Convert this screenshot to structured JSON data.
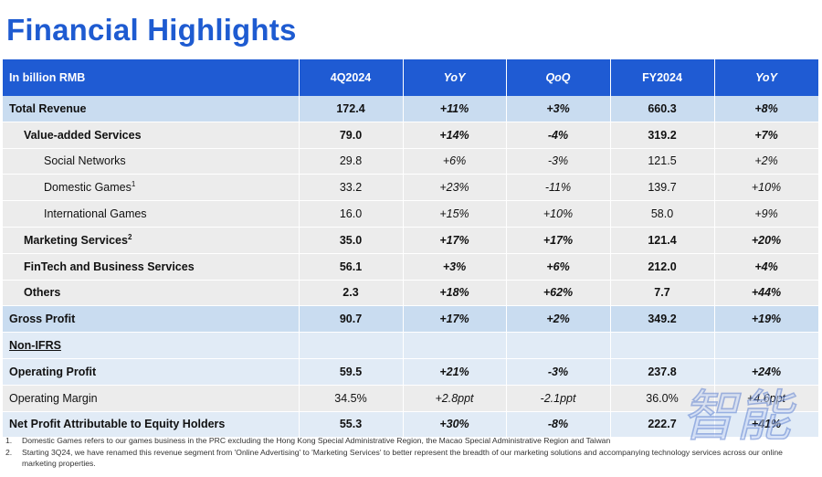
{
  "title": "Financial Highlights",
  "table": {
    "headers": [
      "In billion RMB",
      "4Q2024",
      "YoY",
      "QoQ",
      "FY2024",
      "YoY"
    ],
    "rows": [
      {
        "label": "Total Revenue",
        "sup": "",
        "q4": "172.4",
        "yoy": "+11%",
        "qoq": "+3%",
        "fy": "660.3",
        "fyoy": "+8%"
      },
      {
        "label": "Value-added Services",
        "sup": "",
        "q4": "79.0",
        "yoy": "+14%",
        "qoq": "-4%",
        "fy": "319.2",
        "fyoy": "+7%"
      },
      {
        "label": "Social Networks",
        "sup": "",
        "q4": "29.8",
        "yoy": "+6%",
        "qoq": "-3%",
        "fy": "121.5",
        "fyoy": "+2%"
      },
      {
        "label": "Domestic Games",
        "sup": "1",
        "q4": "33.2",
        "yoy": "+23%",
        "qoq": "-11%",
        "fy": "139.7",
        "fyoy": "+10%"
      },
      {
        "label": "International Games",
        "sup": "",
        "q4": "16.0",
        "yoy": "+15%",
        "qoq": "+10%",
        "fy": "58.0",
        "fyoy": "+9%"
      },
      {
        "label": "Marketing Services",
        "sup": "2",
        "q4": "35.0",
        "yoy": "+17%",
        "qoq": "+17%",
        "fy": "121.4",
        "fyoy": "+20%"
      },
      {
        "label": "FinTech and Business Services",
        "sup": "",
        "q4": "56.1",
        "yoy": "+3%",
        "qoq": "+6%",
        "fy": "212.0",
        "fyoy": "+4%"
      },
      {
        "label": "Others",
        "sup": "",
        "q4": "2.3",
        "yoy": "+18%",
        "qoq": "+62%",
        "fy": "7.7",
        "fyoy": "+44%"
      },
      {
        "label": "Gross Profit",
        "sup": "",
        "q4": "90.7",
        "yoy": "+17%",
        "qoq": "+2%",
        "fy": "349.2",
        "fyoy": "+19%"
      },
      {
        "label": "Non-IFRS",
        "sup": "",
        "q4": "",
        "yoy": "",
        "qoq": "",
        "fy": "",
        "fyoy": ""
      },
      {
        "label": "Operating Profit",
        "sup": "",
        "q4": "59.5",
        "yoy": "+21%",
        "qoq": "-3%",
        "fy": "237.8",
        "fyoy": "+24%"
      },
      {
        "label": "Operating Margin",
        "sup": "",
        "q4": "34.5%",
        "yoy": "+2.8ppt",
        "qoq": "-2.1ppt",
        "fy": "36.0%",
        "fyoy": "+4.6ppt"
      },
      {
        "label": "Net Profit Attributable to Equity Holders",
        "sup": "",
        "q4": "55.3",
        "yoy": "+30%",
        "qoq": "-8%",
        "fy": "222.7",
        "fyoy": "+41%"
      }
    ]
  },
  "notes": [
    {
      "num": "1.",
      "text": "Domestic Games refers to our games business in the PRC excluding the Hong Kong Special Administrative Region, the Macao Special Administrative Region and Taiwan"
    },
    {
      "num": "2.",
      "text": "Starting 3Q24, we have renamed this revenue segment from 'Online Advertising' to 'Marketing Services' to better represent the breadth of our marketing solutions and accompanying technology services across our online marketing properties."
    }
  ],
  "colors": {
    "accent": "#1f5bd3",
    "title": "#1e5bd1",
    "row_blue": "#c9dcf0",
    "row_gray": "#ececec",
    "row_light": "#e1ebf6"
  },
  "watermark": {
    "text": "智能"
  }
}
